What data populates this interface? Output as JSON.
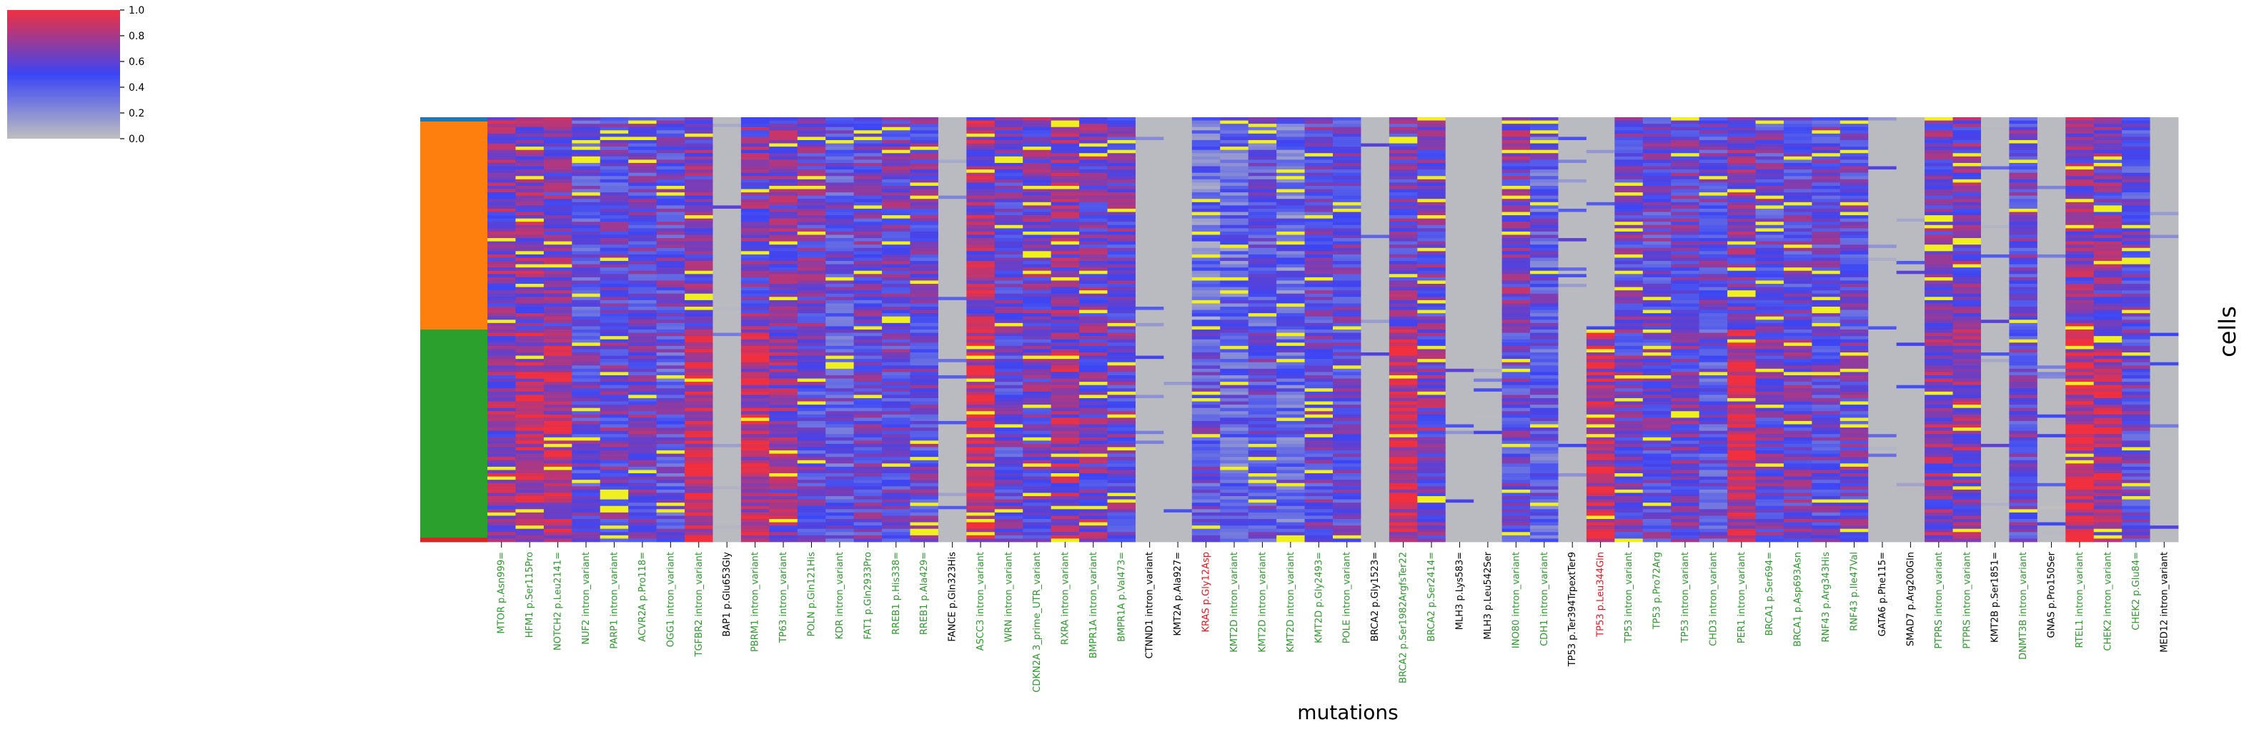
{
  "chart_data": {
    "type": "heatmap",
    "xlabel": "mutations",
    "ylabel": "cells",
    "colorbar": {
      "ticks": [
        "1.0",
        "0.8",
        "0.6",
        "0.4",
        "0.2",
        "0.0"
      ],
      "min": 0.0,
      "max": 1.0,
      "colors": [
        "#bfbfbf",
        "#3b45f5",
        "#f0303f"
      ],
      "nan_color": "#f0f020"
    },
    "row_groups": [
      {
        "fraction": 0.01,
        "color": "#1f77b4"
      },
      {
        "fraction": 0.49,
        "color": "#ff7f0e"
      },
      {
        "fraction": 0.49,
        "color": "#2ca02c"
      },
      {
        "fraction": 0.01,
        "color": "#d62728"
      }
    ],
    "columns": [
      {
        "label": "MTOR p.Asn999=",
        "color": "#2a9a2a",
        "a": 0.7,
        "b": 0.7
      },
      {
        "label": "HFM1 p.Ser115Pro",
        "color": "#2a9a2a",
        "a": 0.7,
        "b": 0.85
      },
      {
        "label": "NOTCH2 p.Leu2141=",
        "color": "#2a9a2a",
        "a": 0.65,
        "b": 0.85
      },
      {
        "label": "NUF2 intron_variant",
        "color": "#2a9a2a",
        "a": 0.5,
        "b": 0.55
      },
      {
        "label": "PARP1 intron_variant",
        "color": "#2a9a2a",
        "a": 0.55,
        "b": 0.6
      },
      {
        "label": "ACVR2A p.Pro118=",
        "color": "#2a9a2a",
        "a": 0.55,
        "b": 0.6
      },
      {
        "label": "OGG1 intron_variant",
        "color": "#2a9a2a",
        "a": 0.55,
        "b": 0.5
      },
      {
        "label": "TGFBR2 intron_variant",
        "color": "#2a9a2a",
        "a": 0.65,
        "b": 0.9
      },
      {
        "label": "BAP1 p.Glu653Gly",
        "color": "#000000",
        "a": 0.05,
        "b": 0.05
      },
      {
        "label": "PBRM1 intron_variant",
        "color": "#2a9a2a",
        "a": 0.65,
        "b": 0.85
      },
      {
        "label": "TP63 intron_variant",
        "color": "#2a9a2a",
        "a": 0.65,
        "b": 0.7
      },
      {
        "label": "POLN p.Gln121His",
        "color": "#2a9a2a",
        "a": 0.6,
        "b": 0.55
      },
      {
        "label": "KDR intron_variant",
        "color": "#2a9a2a",
        "a": 0.5,
        "b": 0.45
      },
      {
        "label": "FAT1 p.Gln2933Pro",
        "color": "#2a9a2a",
        "a": 0.55,
        "b": 0.55
      },
      {
        "label": "RREB1 p.His338=",
        "color": "#2a9a2a",
        "a": 0.6,
        "b": 0.55
      },
      {
        "label": "RREB1 p.Ala429=",
        "color": "#2a9a2a",
        "a": 0.6,
        "b": 0.55
      },
      {
        "label": "FANCE p.Gln323His",
        "color": "#000000",
        "a": 0.05,
        "b": 0.05
      },
      {
        "label": "ASCC3 intron_variant",
        "color": "#2a9a2a",
        "a": 0.75,
        "b": 0.9
      },
      {
        "label": "WRN intron_variant",
        "color": "#2a9a2a",
        "a": 0.6,
        "b": 0.55
      },
      {
        "label": "CDKN2A 3_prime_UTR_variant",
        "color": "#2a9a2a",
        "a": 0.65,
        "b": 0.6
      },
      {
        "label": "RXRA intron_variant",
        "color": "#2a9a2a",
        "a": 0.7,
        "b": 0.75
      },
      {
        "label": "BMPR1A intron_variant",
        "color": "#2a9a2a",
        "a": 0.65,
        "b": 0.65
      },
      {
        "label": "BMPR1A p.Val473=",
        "color": "#2a9a2a",
        "a": 0.6,
        "b": 0.6
      },
      {
        "label": "CTNND1 intron_variant",
        "color": "#000000",
        "a": 0.05,
        "b": 0.05
      },
      {
        "label": "KMT2A p.Ala927=",
        "color": "#000000",
        "a": 0.05,
        "b": 0.05
      },
      {
        "label": "KRAS p.Gly12Asp",
        "color": "#e8141c",
        "a": 0.3,
        "b": 0.5
      },
      {
        "label": "KMT2D intron_variant",
        "color": "#2a9a2a",
        "a": 0.35,
        "b": 0.4
      },
      {
        "label": "KMT2D intron_variant",
        "color": "#2a9a2a",
        "a": 0.45,
        "b": 0.5
      },
      {
        "label": "KMT2D intron_variant",
        "color": "#2a9a2a",
        "a": 0.35,
        "b": 0.4
      },
      {
        "label": "KMT2D p.Gly2493=",
        "color": "#2a9a2a",
        "a": 0.55,
        "b": 0.55
      },
      {
        "label": "POLE intron_variant",
        "color": "#2a9a2a",
        "a": 0.55,
        "b": 0.55
      },
      {
        "label": "BRCA2 p.Gly1523=",
        "color": "#000000",
        "a": 0.05,
        "b": 0.05
      },
      {
        "label": "BRCA2 p.Ser1982ArgfsTer22",
        "color": "#2a9a2a",
        "a": 0.6,
        "b": 0.9
      },
      {
        "label": "BRCA2 p.Ser2414=",
        "color": "#2a9a2a",
        "a": 0.6,
        "b": 0.65
      },
      {
        "label": "MLH3 p.Lys583=",
        "color": "#000000",
        "a": 0.05,
        "b": 0.05
      },
      {
        "label": "MLH3 p.Leu542Ser",
        "color": "#000000",
        "a": 0.05,
        "b": 0.05
      },
      {
        "label": "INO80 intron_variant",
        "color": "#2a9a2a",
        "a": 0.65,
        "b": 0.55
      },
      {
        "label": "CDH1 intron_variant",
        "color": "#2a9a2a",
        "a": 0.45,
        "b": 0.45
      },
      {
        "label": "TP53 p.Ter394TrpextTer9",
        "color": "#000000",
        "a": 0.05,
        "b": 0.05
      },
      {
        "label": "TP53 p.Leu344Gln",
        "color": "#e8141c",
        "a": 0.1,
        "b": 0.85
      },
      {
        "label": "TP53 intron_variant",
        "color": "#2a9a2a",
        "a": 0.6,
        "b": 0.6
      },
      {
        "label": "TP53 p.Pro72Arg",
        "color": "#2a9a2a",
        "a": 0.55,
        "b": 0.55
      },
      {
        "label": "TP53 intron_variant",
        "color": "#2a9a2a",
        "a": 0.6,
        "b": 0.6
      },
      {
        "label": "CHD3 intron_variant",
        "color": "#2a9a2a",
        "a": 0.55,
        "b": 0.5
      },
      {
        "label": "PER1 intron_variant",
        "color": "#2a9a2a",
        "a": 0.65,
        "b": 0.9
      },
      {
        "label": "BRCA1 p.Ser694=",
        "color": "#2a9a2a",
        "a": 0.55,
        "b": 0.6
      },
      {
        "label": "BRCA1 p.Asp693Asn",
        "color": "#2a9a2a",
        "a": 0.55,
        "b": 0.6
      },
      {
        "label": "RNF43 p.Arg343His",
        "color": "#2a9a2a",
        "a": 0.55,
        "b": 0.55
      },
      {
        "label": "RNF43 p.Ile47Val",
        "color": "#2a9a2a",
        "a": 0.55,
        "b": 0.6
      },
      {
        "label": "GATA6 p.Phe115=",
        "color": "#000000",
        "a": 0.1,
        "b": 0.1
      },
      {
        "label": "SMAD7 p.Arg200Gln",
        "color": "#000000",
        "a": 0.1,
        "b": 0.1
      },
      {
        "label": "PTPRS intron_variant",
        "color": "#2a9a2a",
        "a": 0.65,
        "b": 0.7
      },
      {
        "label": "PTPRS intron_variant",
        "color": "#2a9a2a",
        "a": 0.65,
        "b": 0.7
      },
      {
        "label": "KMT2B p.Ser1851=",
        "color": "#000000",
        "a": 0.05,
        "b": 0.05
      },
      {
        "label": "DNMT3B intron_variant",
        "color": "#2a9a2a",
        "a": 0.55,
        "b": 0.55
      },
      {
        "label": "GNAS p.Pro150Ser",
        "color": "#000000",
        "a": 0.05,
        "b": 0.05
      },
      {
        "label": "RTEL1 intron_variant",
        "color": "#2a9a2a",
        "a": 0.7,
        "b": 0.9
      },
      {
        "label": "CHEK2 intron_variant",
        "color": "#2a9a2a",
        "a": 0.65,
        "b": 0.8
      },
      {
        "label": "CHEK2 p.Glu84=",
        "color": "#2a9a2a",
        "a": 0.55,
        "b": 0.55
      },
      {
        "label": "MED12 intron_variant",
        "color": "#000000",
        "a": 0.05,
        "b": 0.05
      }
    ]
  }
}
